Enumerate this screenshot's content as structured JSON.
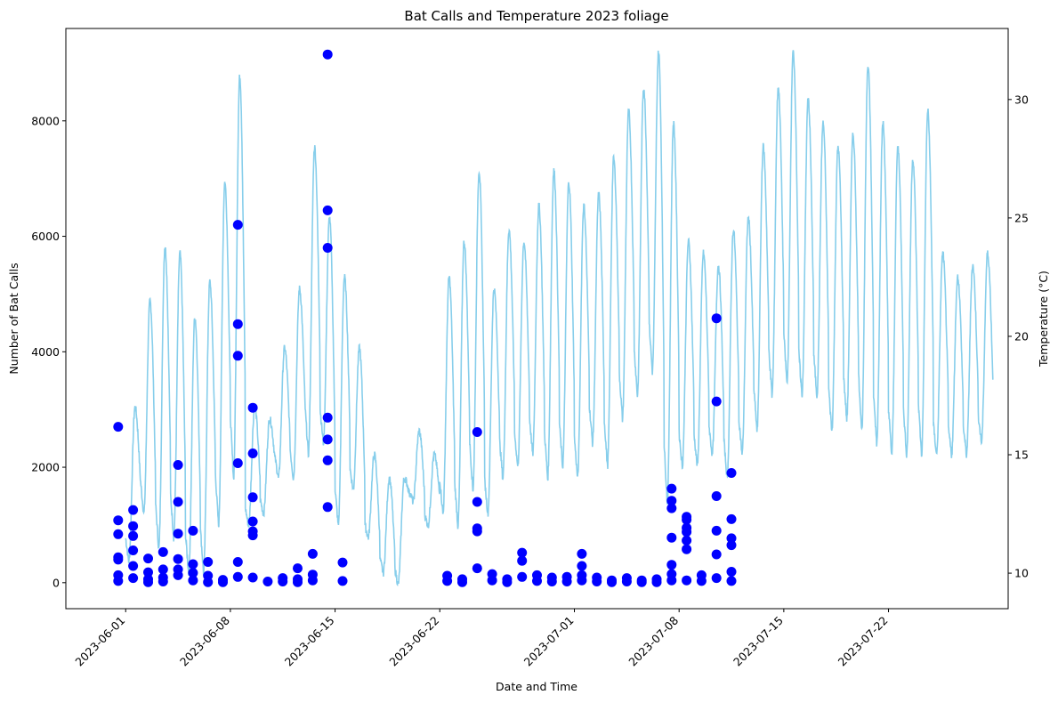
{
  "chart_data": {
    "type": "scatter+line",
    "title": "Bat Calls and Temperature 2023 foliage",
    "xlabel": "Date and Time",
    "ylabel_left": "Number of Bat Calls",
    "ylabel_right": "Temperature (°C)",
    "x_ticks": [
      "2023-06-01",
      "2023-06-08",
      "2023-06-15",
      "2023-06-22",
      "2023-07-01",
      "2023-07-08",
      "2023-07-15",
      "2023-07-22"
    ],
    "xlim": [
      "2023-05-28T00:00",
      "2023-07-30T00:00"
    ],
    "ylim_left": [
      -450,
      9600
    ],
    "y_ticks_left": [
      0,
      2000,
      4000,
      6000,
      8000
    ],
    "ylim_right": [
      8.5,
      33
    ],
    "y_ticks_right": [
      10,
      15,
      20,
      25,
      30
    ],
    "grid": false,
    "colors": {
      "bat_calls": "#0000ff",
      "temperature": "#87ceeb"
    },
    "series": [
      {
        "kind": "scatter",
        "axis": "left",
        "points": [
          [
            "2023-05-31T12:00",
            2700
          ],
          [
            "2023-05-31T12:00",
            1080
          ],
          [
            "2023-05-31T12:00",
            840
          ],
          [
            "2023-05-31T12:00",
            440
          ],
          [
            "2023-05-31T12:00",
            400
          ],
          [
            "2023-05-31T12:00",
            130
          ],
          [
            "2023-05-31T12:00",
            30
          ],
          [
            "2023-06-01T12:00",
            1260
          ],
          [
            "2023-06-01T12:00",
            980
          ],
          [
            "2023-06-01T12:00",
            810
          ],
          [
            "2023-06-01T12:00",
            560
          ],
          [
            "2023-06-01T12:00",
            290
          ],
          [
            "2023-06-01T12:00",
            80
          ],
          [
            "2023-06-02T12:00",
            420
          ],
          [
            "2023-06-02T12:00",
            180
          ],
          [
            "2023-06-02T12:00",
            60
          ],
          [
            "2023-06-02T12:00",
            10
          ],
          [
            "2023-06-03T12:00",
            530
          ],
          [
            "2023-06-03T12:00",
            230
          ],
          [
            "2023-06-03T12:00",
            90
          ],
          [
            "2023-06-03T12:00",
            20
          ],
          [
            "2023-06-04T12:00",
            2040
          ],
          [
            "2023-06-04T12:00",
            1400
          ],
          [
            "2023-06-04T12:00",
            850
          ],
          [
            "2023-06-04T12:00",
            410
          ],
          [
            "2023-06-04T12:00",
            230
          ],
          [
            "2023-06-04T12:00",
            130
          ],
          [
            "2023-06-05T12:00",
            900
          ],
          [
            "2023-06-05T12:00",
            320
          ],
          [
            "2023-06-05T12:00",
            170
          ],
          [
            "2023-06-05T12:00",
            40
          ],
          [
            "2023-06-06T12:00",
            360
          ],
          [
            "2023-06-06T12:00",
            120
          ],
          [
            "2023-06-06T12:00",
            10
          ],
          [
            "2023-06-07T12:00",
            50
          ],
          [
            "2023-06-07T12:00",
            10
          ],
          [
            "2023-06-08T12:00",
            6200
          ],
          [
            "2023-06-08T12:00",
            4480
          ],
          [
            "2023-06-08T12:00",
            3930
          ],
          [
            "2023-06-08T12:00",
            2070
          ],
          [
            "2023-06-08T12:00",
            360
          ],
          [
            "2023-06-08T12:00",
            100
          ],
          [
            "2023-06-09T12:00",
            3030
          ],
          [
            "2023-06-09T12:00",
            2240
          ],
          [
            "2023-06-09T12:00",
            1480
          ],
          [
            "2023-06-09T12:00",
            1060
          ],
          [
            "2023-06-09T12:00",
            890
          ],
          [
            "2023-06-09T12:00",
            820
          ],
          [
            "2023-06-09T12:00",
            90
          ],
          [
            "2023-06-10T12:00",
            20
          ],
          [
            "2023-06-11T12:00",
            80
          ],
          [
            "2023-06-11T12:00",
            20
          ],
          [
            "2023-06-12T12:00",
            250
          ],
          [
            "2023-06-12T12:00",
            60
          ],
          [
            "2023-06-12T12:00",
            10
          ],
          [
            "2023-06-13T12:00",
            500
          ],
          [
            "2023-06-13T12:00",
            140
          ],
          [
            "2023-06-13T12:00",
            40
          ],
          [
            "2023-06-14T12:00",
            9150
          ],
          [
            "2023-06-14T12:00",
            6450
          ],
          [
            "2023-06-14T12:00",
            5800
          ],
          [
            "2023-06-14T12:00",
            2860
          ],
          [
            "2023-06-14T12:00",
            2480
          ],
          [
            "2023-06-14T12:00",
            2120
          ],
          [
            "2023-06-14T12:00",
            1310
          ],
          [
            "2023-06-15T12:00",
            350
          ],
          [
            "2023-06-15T12:00",
            30
          ],
          [
            "2023-06-22T12:00",
            120
          ],
          [
            "2023-06-22T12:00",
            30
          ],
          [
            "2023-06-23T12:00",
            60
          ],
          [
            "2023-06-23T12:00",
            10
          ],
          [
            "2023-06-24T12:00",
            2610
          ],
          [
            "2023-06-24T12:00",
            1400
          ],
          [
            "2023-06-24T12:00",
            940
          ],
          [
            "2023-06-24T12:00",
            890
          ],
          [
            "2023-06-24T12:00",
            250
          ],
          [
            "2023-06-25T12:00",
            150
          ],
          [
            "2023-06-25T12:00",
            40
          ],
          [
            "2023-06-26T12:00",
            60
          ],
          [
            "2023-06-26T12:00",
            10
          ],
          [
            "2023-06-27T12:00",
            520
          ],
          [
            "2023-06-27T12:00",
            380
          ],
          [
            "2023-06-27T12:00",
            100
          ],
          [
            "2023-06-28T12:00",
            130
          ],
          [
            "2023-06-28T12:00",
            30
          ],
          [
            "2023-06-29T12:00",
            90
          ],
          [
            "2023-06-29T12:00",
            20
          ],
          [
            "2023-06-30T12:00",
            100
          ],
          [
            "2023-06-30T12:00",
            20
          ],
          [
            "2023-07-01T12:00",
            500
          ],
          [
            "2023-07-01T12:00",
            290
          ],
          [
            "2023-07-01T12:00",
            130
          ],
          [
            "2023-07-01T12:00",
            40
          ],
          [
            "2023-07-02T12:00",
            90
          ],
          [
            "2023-07-02T12:00",
            20
          ],
          [
            "2023-07-03T12:00",
            40
          ],
          [
            "2023-07-03T12:00",
            10
          ],
          [
            "2023-07-04T12:00",
            80
          ],
          [
            "2023-07-04T12:00",
            20
          ],
          [
            "2023-07-05T12:00",
            40
          ],
          [
            "2023-07-05T12:00",
            10
          ],
          [
            "2023-07-06T12:00",
            60
          ],
          [
            "2023-07-06T12:00",
            10
          ],
          [
            "2023-07-07T12:00",
            1630
          ],
          [
            "2023-07-07T12:00",
            1420
          ],
          [
            "2023-07-07T12:00",
            1290
          ],
          [
            "2023-07-07T12:00",
            780
          ],
          [
            "2023-07-07T12:00",
            310
          ],
          [
            "2023-07-07T12:00",
            150
          ],
          [
            "2023-07-07T12:00",
            40
          ],
          [
            "2023-07-08T12:00",
            1140
          ],
          [
            "2023-07-08T12:00",
            1090
          ],
          [
            "2023-07-08T12:00",
            950
          ],
          [
            "2023-07-08T12:00",
            880
          ],
          [
            "2023-07-08T12:00",
            730
          ],
          [
            "2023-07-08T12:00",
            580
          ],
          [
            "2023-07-08T12:00",
            40
          ],
          [
            "2023-07-09T12:00",
            130
          ],
          [
            "2023-07-09T12:00",
            30
          ],
          [
            "2023-07-10T12:00",
            4580
          ],
          [
            "2023-07-10T12:00",
            3140
          ],
          [
            "2023-07-10T12:00",
            1500
          ],
          [
            "2023-07-10T12:00",
            900
          ],
          [
            "2023-07-10T12:00",
            490
          ],
          [
            "2023-07-10T12:00",
            80
          ],
          [
            "2023-07-11T12:00",
            1900
          ],
          [
            "2023-07-11T12:00",
            1100
          ],
          [
            "2023-07-11T12:00",
            770
          ],
          [
            "2023-07-11T12:00",
            650
          ],
          [
            "2023-07-11T12:00",
            190
          ],
          [
            "2023-07-11T12:00",
            30
          ]
        ]
      },
      {
        "kind": "line",
        "axis": "right",
        "approx_daily_min_max": [
          [
            "2023-06-01",
            10.5,
            17.0
          ],
          [
            "2023-06-02",
            12.5,
            21.5
          ],
          [
            "2023-06-03",
            11.0,
            23.8
          ],
          [
            "2023-06-04",
            11.5,
            23.5
          ],
          [
            "2023-06-05",
            10.0,
            20.8
          ],
          [
            "2023-06-06",
            10.0,
            22.3
          ],
          [
            "2023-06-07",
            12.0,
            26.5
          ],
          [
            "2023-06-08",
            14.0,
            31.0
          ],
          [
            "2023-06-09",
            12.0,
            17.0
          ],
          [
            "2023-06-10",
            12.5,
            16.5
          ],
          [
            "2023-06-11",
            14.0,
            19.5
          ],
          [
            "2023-06-12",
            14.0,
            22.0
          ],
          [
            "2023-06-13",
            15.0,
            28.0
          ],
          [
            "2023-06-14",
            15.5,
            25.0
          ],
          [
            "2023-06-15",
            12.0,
            22.5
          ],
          [
            "2023-06-16",
            13.5,
            19.5
          ],
          [
            "2023-06-17",
            11.5,
            15.0
          ],
          [
            "2023-06-18",
            10.0,
            14.0
          ],
          [
            "2023-06-19",
            9.5,
            14.0
          ],
          [
            "2023-06-20",
            13.0,
            16.0
          ],
          [
            "2023-06-21",
            12.0,
            15.0
          ],
          [
            "2023-06-22",
            12.5,
            22.5
          ],
          [
            "2023-06-23",
            12.0,
            24.0
          ],
          [
            "2023-06-24",
            13.5,
            27.0
          ],
          [
            "2023-06-25",
            12.5,
            22.0
          ],
          [
            "2023-06-26",
            14.0,
            24.5
          ],
          [
            "2023-06-27",
            14.5,
            24.0
          ],
          [
            "2023-06-28",
            15.0,
            25.5
          ],
          [
            "2023-06-29",
            14.0,
            27.0
          ],
          [
            "2023-06-30",
            14.5,
            26.5
          ],
          [
            "2023-07-01",
            14.0,
            25.5
          ],
          [
            "2023-07-02",
            15.5,
            26.0
          ],
          [
            "2023-07-03",
            14.5,
            27.5
          ],
          [
            "2023-07-04",
            16.5,
            29.5
          ],
          [
            "2023-07-05",
            17.5,
            30.5
          ],
          [
            "2023-07-06",
            18.5,
            32.0
          ],
          [
            "2023-07-07",
            13.0,
            29.0
          ],
          [
            "2023-07-08",
            14.5,
            24.0
          ],
          [
            "2023-07-09",
            14.5,
            23.5
          ],
          [
            "2023-07-10",
            15.0,
            23.0
          ],
          [
            "2023-07-11",
            14.0,
            24.5
          ],
          [
            "2023-07-12",
            15.0,
            25.0
          ],
          [
            "2023-07-13",
            16.0,
            28.0
          ],
          [
            "2023-07-14",
            17.5,
            30.5
          ],
          [
            "2023-07-15",
            18.0,
            32.0
          ],
          [
            "2023-07-16",
            17.5,
            30.0
          ],
          [
            "2023-07-17",
            17.5,
            29.0
          ],
          [
            "2023-07-18",
            16.0,
            28.0
          ],
          [
            "2023-07-19",
            16.5,
            28.5
          ],
          [
            "2023-07-20",
            16.0,
            31.5
          ],
          [
            "2023-07-21",
            15.5,
            29.0
          ],
          [
            "2023-07-22",
            15.0,
            28.0
          ],
          [
            "2023-07-23",
            15.0,
            27.5
          ],
          [
            "2023-07-24",
            15.0,
            29.5
          ],
          [
            "2023-07-25",
            15.0,
            23.5
          ],
          [
            "2023-07-26",
            15.0,
            22.5
          ],
          [
            "2023-07-27",
            15.0,
            23.0
          ],
          [
            "2023-07-28",
            15.5,
            23.5
          ]
        ]
      }
    ]
  }
}
